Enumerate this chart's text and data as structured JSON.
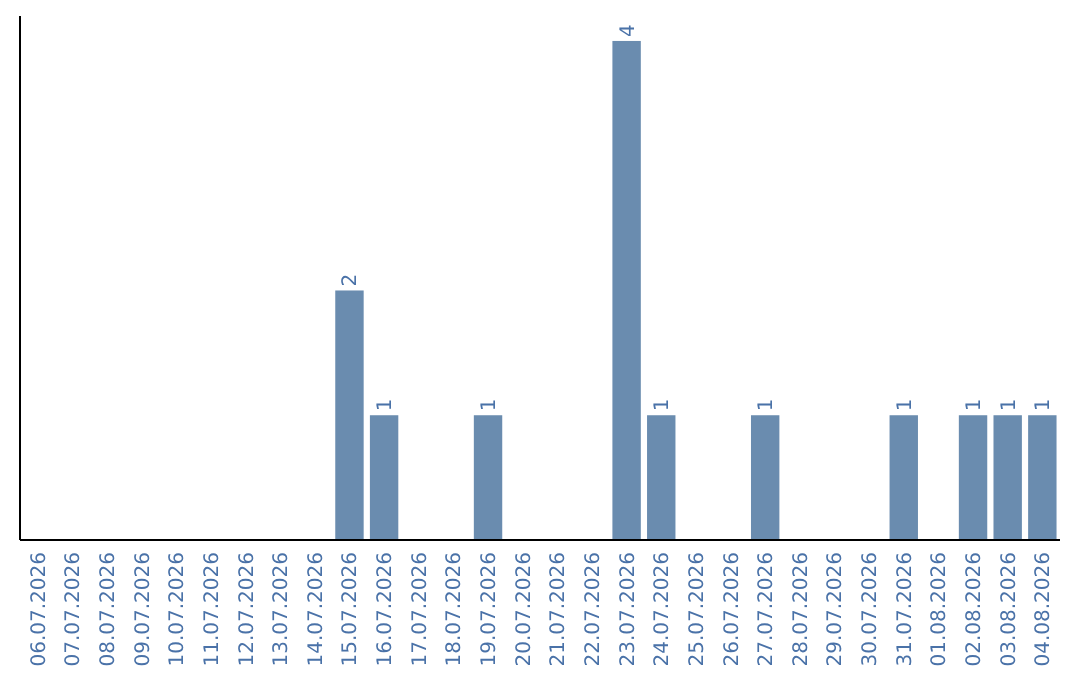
{
  "chart_data": {
    "type": "bar",
    "categories": [
      "06.07.2026",
      "07.07.2026",
      "08.07.2026",
      "09.07.2026",
      "10.07.2026",
      "11.07.2026",
      "12.07.2026",
      "13.07.2026",
      "14.07.2026",
      "15.07.2026",
      "16.07.2026",
      "17.07.2026",
      "18.07.2026",
      "19.07.2026",
      "20.07.2026",
      "21.07.2026",
      "22.07.2026",
      "23.07.2026",
      "24.07.2026",
      "25.07.2026",
      "26.07.2026",
      "27.07.2026",
      "28.07.2026",
      "29.07.2026",
      "30.07.2026",
      "31.07.2026",
      "01.08.2026",
      "02.08.2026",
      "03.08.2026",
      "04.08.2026"
    ],
    "values": [
      0,
      0,
      0,
      0,
      0,
      0,
      0,
      0,
      0,
      2,
      1,
      0,
      0,
      1,
      0,
      0,
      0,
      4,
      1,
      0,
      0,
      1,
      0,
      0,
      0,
      1,
      0,
      1,
      1,
      1
    ],
    "value_labels": [
      null,
      null,
      null,
      null,
      null,
      null,
      null,
      null,
      null,
      "2",
      "1",
      null,
      null,
      "1",
      null,
      null,
      null,
      "4",
      "1",
      null,
      null,
      "1",
      null,
      null,
      null,
      "1",
      null,
      "1",
      "1",
      "1"
    ],
    "color": "#6a8caf",
    "ylim": [
      0,
      4.2
    ],
    "tick_labels": "x"
  }
}
